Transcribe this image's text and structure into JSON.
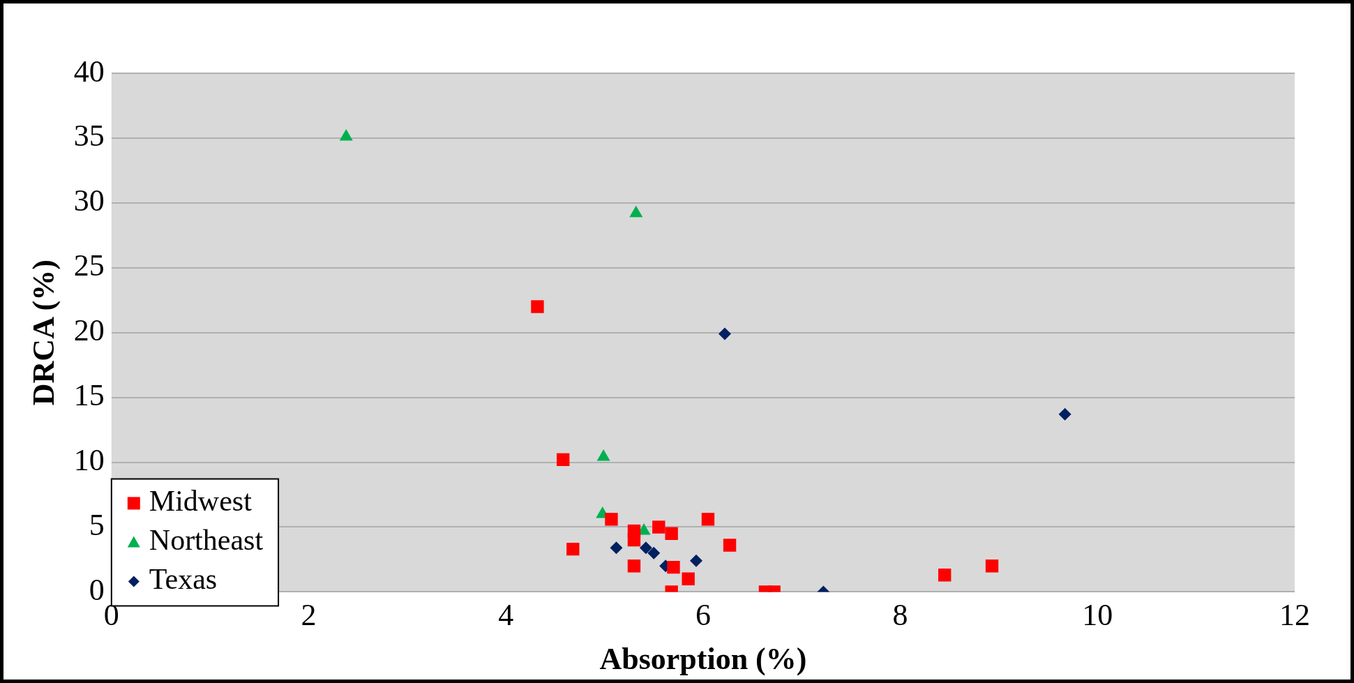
{
  "chart_data": {
    "type": "scatter",
    "xlabel": "Absorption (%)",
    "ylabel": "DRCA (%)",
    "xlim": [
      0,
      12
    ],
    "xticks": [
      0,
      2,
      4,
      6,
      8,
      10,
      12
    ],
    "ylim": [
      0,
      40
    ],
    "yticks": [
      0,
      5,
      10,
      15,
      20,
      25,
      30,
      35,
      40
    ],
    "grid": "y",
    "legend": "bottom left",
    "series": [
      {
        "name": "Midwest",
        "color": "#ff0000",
        "marker": "square",
        "x": [
          4.32,
          4.58,
          4.68,
          5.07,
          5.3,
          5.3,
          5.3,
          5.55,
          5.68,
          5.7,
          5.68,
          5.85,
          6.05,
          6.27,
          6.63,
          6.72,
          8.45,
          8.93
        ],
        "values": [
          22,
          10.2,
          3.3,
          5.6,
          4.7,
          4.0,
          2.0,
          5.0,
          4.5,
          1.9,
          0,
          1.0,
          5.6,
          3.6,
          0,
          0,
          1.3,
          2.0
        ]
      },
      {
        "name": "Northeast",
        "color": "#00b050",
        "marker": "triangle",
        "x": [
          2.38,
          5.32,
          4.99,
          4.98,
          5.4
        ],
        "values": [
          35.1,
          29.2,
          10.4,
          6.0,
          4.7
        ]
      },
      {
        "name": "Texas",
        "color": "#002060",
        "marker": "diamond",
        "x": [
          6.22,
          9.67,
          5.12,
          5.42,
          5.5,
          5.62,
          5.93,
          7.22
        ],
        "values": [
          19.9,
          13.7,
          3.4,
          3.4,
          3.0,
          2.0,
          2.4,
          0
        ]
      }
    ]
  }
}
